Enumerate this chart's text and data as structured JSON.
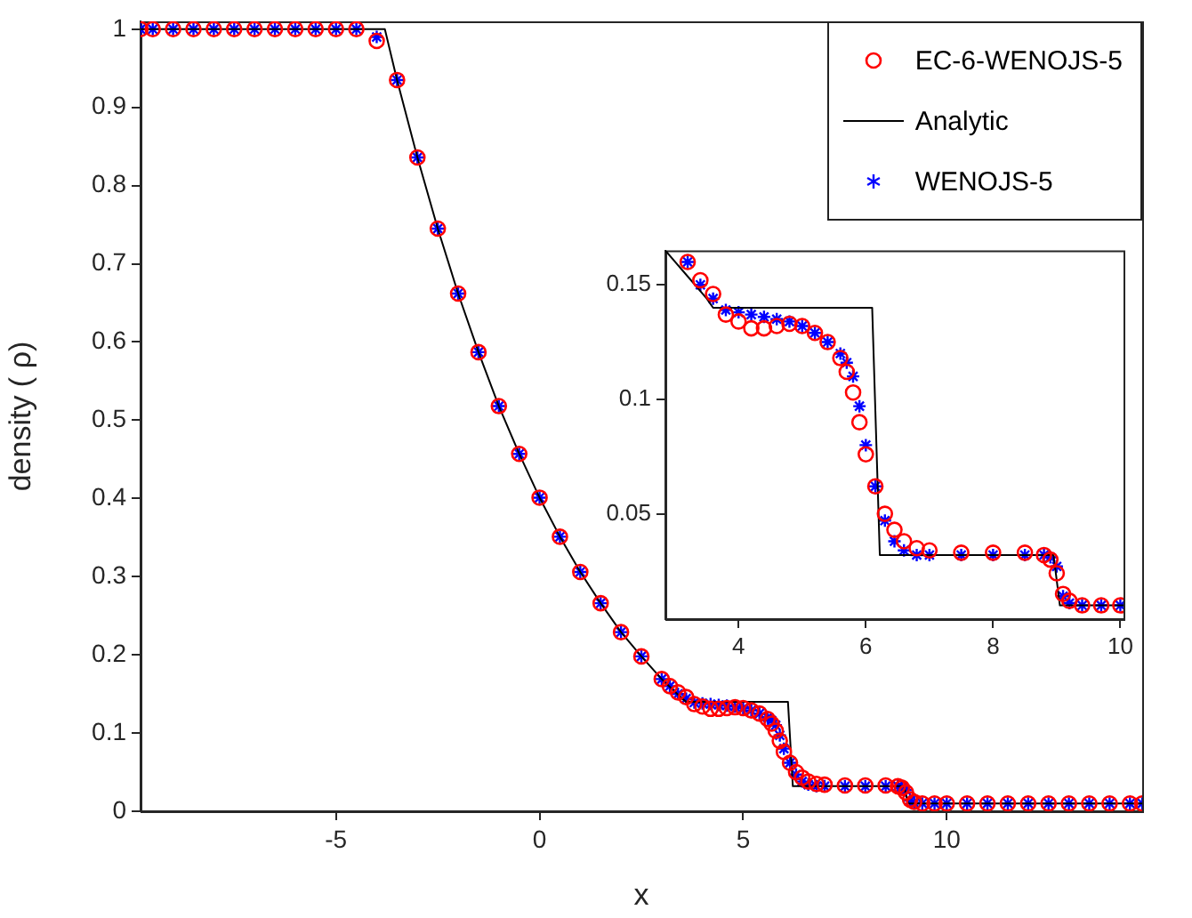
{
  "chart_data": [
    {
      "type": "scatter",
      "xlabel": "x",
      "ylabel": "density ( ρ)",
      "xlim": [
        -9.8,
        14.8
      ],
      "ylim": [
        0,
        1.01
      ],
      "xticks": [
        -5,
        0,
        5,
        10
      ],
      "yticks": [
        0,
        0.1,
        0.2,
        0.3,
        0.4,
        0.5,
        0.6,
        0.7,
        0.8,
        0.9,
        1
      ],
      "grid": false,
      "legend": "top right",
      "x": [
        -9.8,
        -9.5,
        -9,
        -8.5,
        -8,
        -7.5,
        -7,
        -6.5,
        -6,
        -5.5,
        -5,
        -4.5,
        -4,
        -3.5,
        -3,
        -2.5,
        -2,
        -1.5,
        -1,
        -0.5,
        0,
        0.5,
        1,
        1.5,
        2,
        2.5,
        3,
        3.2,
        3.4,
        3.6,
        3.8,
        4.0,
        4.2,
        4.4,
        4.6,
        4.8,
        5.0,
        5.2,
        5.4,
        5.6,
        5.7,
        5.8,
        5.9,
        6.0,
        6.15,
        6.3,
        6.45,
        6.6,
        6.8,
        7.0,
        7.5,
        8.0,
        8.5,
        8.8,
        8.9,
        9.0,
        9.1,
        9.2,
        9.4,
        9.7,
        10,
        10.5,
        11,
        11.5,
        12,
        12.5,
        13,
        13.5,
        14,
        14.5,
        14.8
      ],
      "series": [
        {
          "name": "EC-6-WENOJS-5",
          "type": "scatter",
          "marker": "circle",
          "color": "#ff0000",
          "values": [
            1,
            1,
            1,
            1,
            1,
            1,
            1,
            1,
            1,
            1,
            1,
            1,
            0.985,
            0.935,
            0.836,
            0.745,
            0.662,
            0.587,
            0.518,
            0.457,
            0.401,
            0.351,
            0.306,
            0.266,
            0.229,
            0.198,
            0.169,
            0.16,
            0.152,
            0.146,
            0.137,
            0.134,
            0.131,
            0.131,
            0.132,
            0.133,
            0.132,
            0.129,
            0.125,
            0.118,
            0.112,
            0.103,
            0.09,
            0.076,
            0.062,
            0.05,
            0.043,
            0.038,
            0.035,
            0.034,
            0.033,
            0.033,
            0.033,
            0.032,
            0.03,
            0.024,
            0.015,
            0.012,
            0.01,
            0.01,
            0.01,
            0.01,
            0.01,
            0.01,
            0.01,
            0.01,
            0.01,
            0.01,
            0.01,
            0.01,
            0.01
          ]
        },
        {
          "name": "Analytic",
          "type": "line",
          "line_style": "solid",
          "color": "#000000",
          "x": [
            -9.8,
            -3.8,
            -3.5,
            -3,
            -2.5,
            -2,
            -1.5,
            -1,
            -0.5,
            0,
            0.5,
            1,
            1.5,
            2,
            2.5,
            3,
            3.5,
            3.6,
            6.1,
            6.22,
            8.95,
            9.05,
            14.8
          ],
          "values": [
            1,
            1,
            0.935,
            0.836,
            0.745,
            0.662,
            0.587,
            0.518,
            0.457,
            0.401,
            0.351,
            0.306,
            0.266,
            0.229,
            0.198,
            0.169,
            0.144,
            0.14,
            0.14,
            0.032,
            0.032,
            0.01,
            0.01
          ]
        },
        {
          "name": "WENOJS-5",
          "type": "scatter",
          "marker": "cross",
          "color": "#0000ff",
          "values": [
            1,
            1,
            1,
            1,
            1,
            1,
            1,
            1,
            1,
            1,
            1,
            1,
            0.99,
            0.935,
            0.836,
            0.745,
            0.662,
            0.587,
            0.518,
            0.457,
            0.401,
            0.351,
            0.306,
            0.266,
            0.229,
            0.198,
            0.169,
            0.16,
            0.15,
            0.144,
            0.139,
            0.138,
            0.137,
            0.136,
            0.135,
            0.134,
            0.132,
            0.129,
            0.125,
            0.12,
            0.116,
            0.11,
            0.097,
            0.08,
            0.062,
            0.047,
            0.038,
            0.034,
            0.032,
            0.032,
            0.032,
            0.032,
            0.032,
            0.032,
            0.031,
            0.027,
            0.014,
            0.011,
            0.01,
            0.01,
            0.01,
            0.01,
            0.01,
            0.01,
            0.01,
            0.01,
            0.01,
            0.01,
            0.01,
            0.01,
            0.01
          ]
        }
      ]
    },
    {
      "type": "scatter",
      "xlim": [
        2.85,
        10.05
      ],
      "ylim": [
        0.004,
        0.165
      ],
      "xticks": [
        4,
        6,
        8,
        10
      ],
      "yticks": [
        0.05,
        0.1,
        0.15
      ],
      "grid": false,
      "x": [
        3.2,
        3.4,
        3.6,
        3.8,
        4.0,
        4.2,
        4.4,
        4.6,
        4.8,
        5.0,
        5.2,
        5.4,
        5.6,
        5.7,
        5.8,
        5.9,
        6.0,
        6.15,
        6.3,
        6.45,
        6.6,
        6.8,
        7.0,
        7.5,
        8.0,
        8.5,
        8.8,
        8.9,
        9.0,
        9.1,
        9.2,
        9.4,
        9.7,
        10
      ],
      "series": [
        {
          "type": "scatter",
          "marker": "circle",
          "color": "#ff0000",
          "values": [
            0.16,
            0.152,
            0.146,
            0.137,
            0.134,
            0.131,
            0.131,
            0.132,
            0.133,
            0.132,
            0.129,
            0.125,
            0.118,
            0.112,
            0.103,
            0.09,
            0.076,
            0.062,
            0.05,
            0.043,
            0.038,
            0.035,
            0.034,
            0.033,
            0.033,
            0.033,
            0.032,
            0.03,
            0.024,
            0.015,
            0.012,
            0.01,
            0.01,
            0.01
          ]
        },
        {
          "type": "line",
          "line_style": "solid",
          "color": "#000000",
          "x": [
            2.85,
            3.5,
            3.6,
            6.1,
            6.22,
            8.95,
            9.05,
            10.05
          ],
          "values": [
            0.165,
            0.144,
            0.14,
            0.14,
            0.032,
            0.032,
            0.01,
            0.01
          ]
        },
        {
          "type": "scatter",
          "marker": "cross",
          "color": "#0000ff",
          "values": [
            0.16,
            0.15,
            0.144,
            0.139,
            0.138,
            0.137,
            0.136,
            0.135,
            0.134,
            0.132,
            0.129,
            0.125,
            0.12,
            0.116,
            0.11,
            0.097,
            0.08,
            0.062,
            0.047,
            0.038,
            0.034,
            0.032,
            0.032,
            0.032,
            0.032,
            0.032,
            0.032,
            0.031,
            0.027,
            0.014,
            0.011,
            0.01,
            0.01,
            0.01
          ]
        }
      ]
    }
  ]
}
